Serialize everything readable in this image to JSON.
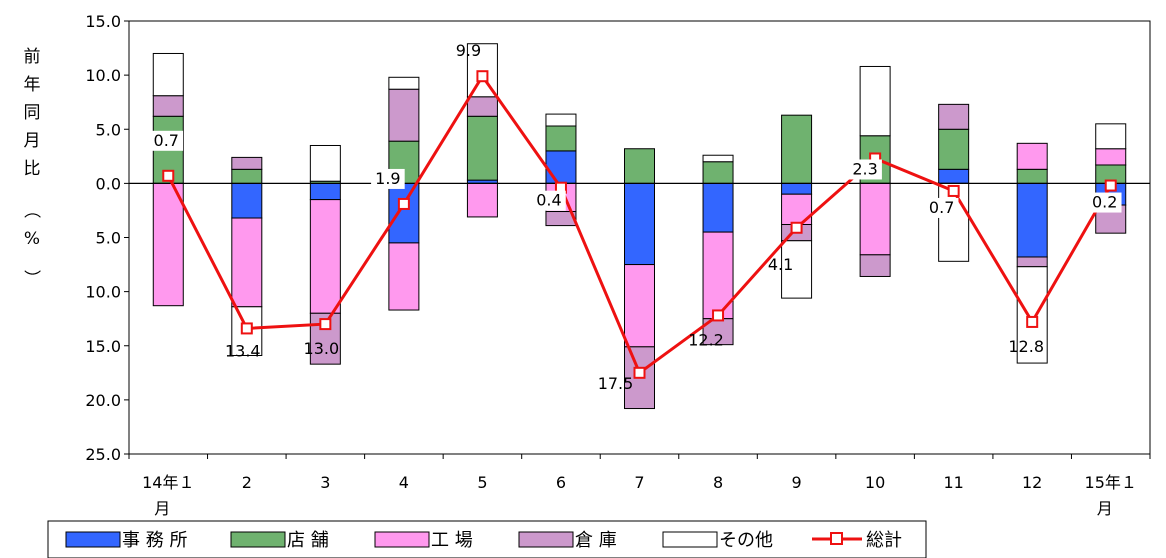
{
  "chart_data": {
    "type": "bar",
    "subtype": "stacked-bar-with-line",
    "ylabel": "前年同月比（%）",
    "ylim": [
      -25,
      15
    ],
    "y_ticks": [
      {
        "value": 15,
        "label": "15.0"
      },
      {
        "value": 10,
        "label": "10.0"
      },
      {
        "value": 5,
        "label": "5.0"
      },
      {
        "value": 0,
        "label": "0.0"
      },
      {
        "value": -5,
        "label": "5.0"
      },
      {
        "value": -10,
        "label": "10.0"
      },
      {
        "value": -15,
        "label": "15.0"
      },
      {
        "value": -20,
        "label": "20.0"
      },
      {
        "value": -25,
        "label": "25.0"
      }
    ],
    "categories": [
      "14年１月",
      "2",
      "3",
      "4",
      "5",
      "6",
      "7",
      "8",
      "9",
      "10",
      "11",
      "12",
      "15年１月"
    ],
    "series": [
      {
        "name": "事務所",
        "color": "#3366ff",
        "values": [
          0,
          -3.2,
          -1.5,
          -5.5,
          0.3,
          3.0,
          -7.5,
          -4.5,
          -1.0,
          0,
          1.3,
          -6.8,
          -2.0
        ]
      },
      {
        "name": "店 舗",
        "color": "#6fb26f",
        "values": [
          6.2,
          1.3,
          0.2,
          3.9,
          5.9,
          2.3,
          3.2,
          2.0,
          6.3,
          4.4,
          3.7,
          1.3,
          1.7
        ]
      },
      {
        "name": "工 場",
        "color": "#ff99ee",
        "values": [
          -11.3,
          -8.2,
          -10.5,
          -6.2,
          -3.1,
          -2.6,
          -7.6,
          -8.0,
          -2.8,
          -6.6,
          0,
          2.4,
          1.5
        ]
      },
      {
        "name": "倉 庫",
        "color": "#cc99cc",
        "values": [
          1.9,
          1.1,
          -4.7,
          4.8,
          1.8,
          -1.3,
          -5.7,
          -2.4,
          -1.5,
          -2.0,
          2.3,
          -0.9,
          -2.6
        ]
      },
      {
        "name": "その他",
        "color": "#ffffff",
        "values": [
          3.9,
          -4.5,
          3.3,
          1.1,
          4.9,
          1.1,
          0,
          0.6,
          -5.3,
          6.4,
          -7.2,
          -8.9,
          2.3
        ]
      },
      {
        "name": "総計",
        "color": "#ee1111",
        "type": "line",
        "values": [
          0.7,
          -13.4,
          -13.0,
          -1.9,
          9.9,
          -0.4,
          -17.5,
          -12.2,
          -4.1,
          2.3,
          -0.7,
          -12.8,
          -0.2
        ]
      }
    ],
    "data_labels": [
      "0.7",
      "13.4",
      "13.0",
      "1.9",
      "9.9",
      "0.4",
      "17.5",
      "12.2",
      "4.1",
      "2.3",
      "0.7",
      "12.8",
      "0.2"
    ],
    "legend_position": "bottom",
    "grid": false
  },
  "legend": {
    "office": "事 務 所",
    "store": "店 舗",
    "factory": "工 場",
    "warehouse": "倉 庫",
    "other": "その他",
    "total": "総計"
  },
  "ylabel_parts": {
    "chars": [
      "前",
      "年",
      "同",
      "月",
      "比"
    ],
    "open": "（",
    "percent": "%",
    "close": "）"
  }
}
